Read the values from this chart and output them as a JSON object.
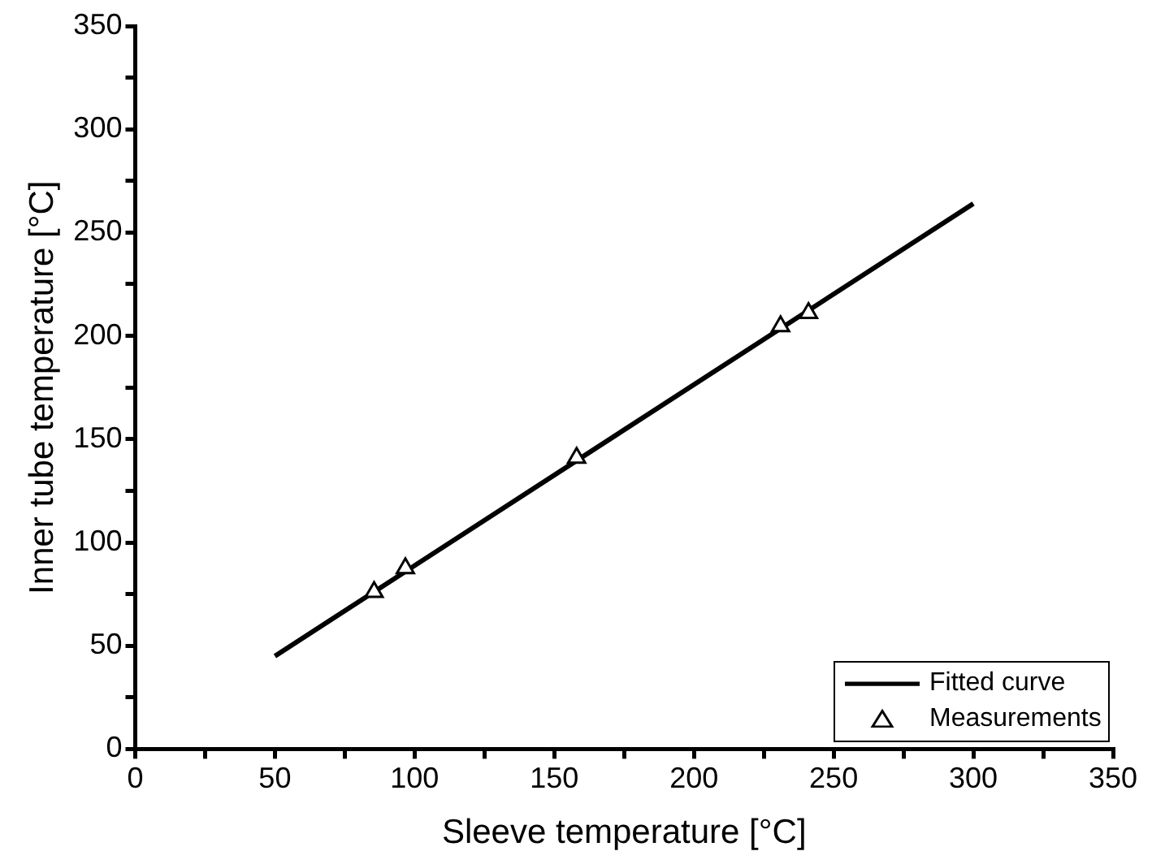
{
  "chart_data": {
    "type": "scatter",
    "xlabel": "Sleeve temperature [°C]",
    "ylabel": "Inner tube temperature [°C]",
    "xlim": [
      0,
      350
    ],
    "ylim": [
      0,
      350
    ],
    "xticks": [
      0,
      {
        "value": 25,
        "label": null
      },
      50,
      {
        "value": 75,
        "label": null
      },
      100,
      {
        "value": 125,
        "label": null
      },
      150,
      {
        "value": 175,
        "label": null
      },
      200,
      {
        "value": 225,
        "label": null
      },
      250,
      {
        "value": 275,
        "label": null
      },
      300,
      {
        "value": 325,
        "label": null
      },
      350
    ],
    "yticks": [
      0,
      {
        "value": 25,
        "label": null
      },
      50,
      {
        "value": 75,
        "label": null
      },
      100,
      {
        "value": 125,
        "label": null
      },
      150,
      {
        "value": 175,
        "label": null
      },
      200,
      {
        "value": 225,
        "label": null
      },
      250,
      {
        "value": 275,
        "label": null
      },
      300,
      {
        "value": 325,
        "label": null
      },
      350
    ],
    "grid": false,
    "legend": "bottom right",
    "series": [
      {
        "name": "Fitted curve",
        "type": "line",
        "color": "#000000",
        "x": [
          50,
          300
        ],
        "values": [
          45,
          264
        ],
        "marker": "none",
        "line_style": "solid"
      },
      {
        "name": "Measurements",
        "type": "scatter",
        "color": "#000000",
        "x": [
          85.5,
          96.7,
          158,
          231,
          241
        ],
        "values": [
          76,
          87.5,
          141,
          204.7,
          211
        ],
        "marker": "triangle"
      }
    ]
  }
}
